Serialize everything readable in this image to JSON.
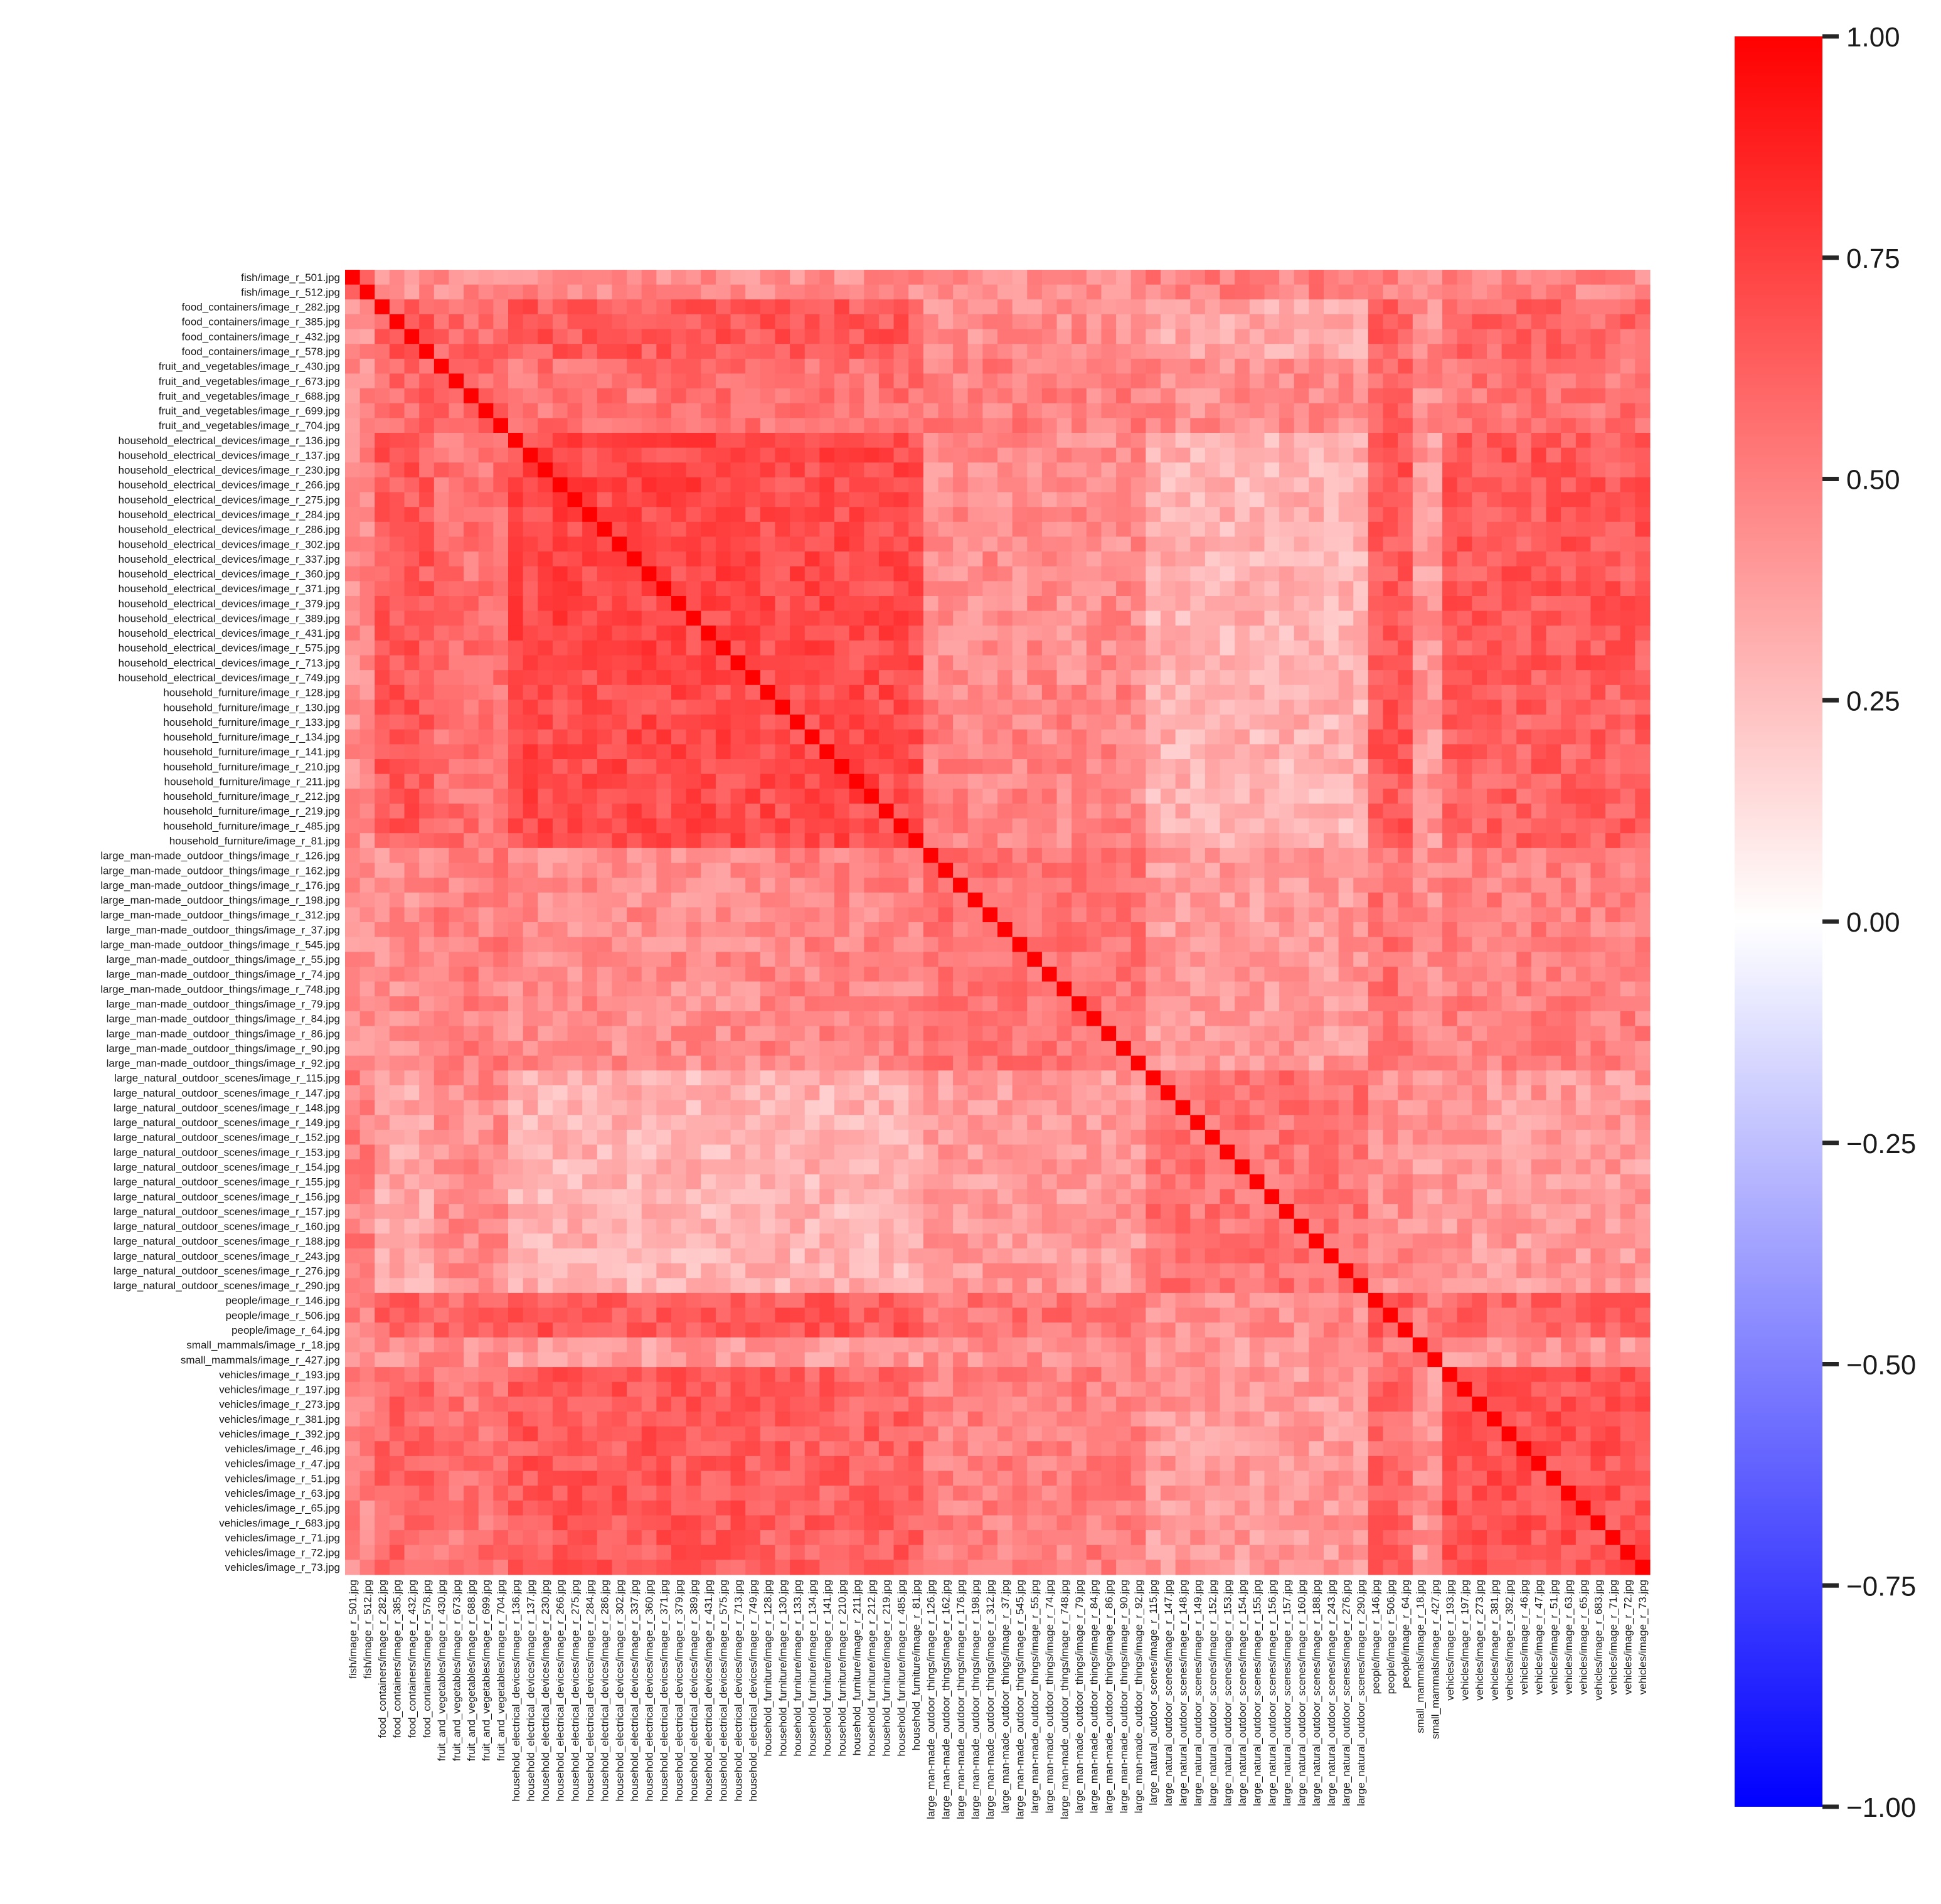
{
  "chart_data": {
    "type": "heatmap",
    "title": "",
    "xlabel": "",
    "ylabel": "",
    "labels": [
      "fish/image_r_501.jpg",
      "fish/image_r_512.jpg",
      "food_containers/image_r_282.jpg",
      "food_containers/image_r_385.jpg",
      "food_containers/image_r_432.jpg",
      "food_containers/image_r_578.jpg",
      "fruit_and_vegetables/image_r_430.jpg",
      "fruit_and_vegetables/image_r_673.jpg",
      "fruit_and_vegetables/image_r_688.jpg",
      "fruit_and_vegetables/image_r_699.jpg",
      "fruit_and_vegetables/image_r_704.jpg",
      "household_electrical_devices/image_r_136.jpg",
      "household_electrical_devices/image_r_137.jpg",
      "household_electrical_devices/image_r_230.jpg",
      "household_electrical_devices/image_r_266.jpg",
      "household_electrical_devices/image_r_275.jpg",
      "household_electrical_devices/image_r_284.jpg",
      "household_electrical_devices/image_r_286.jpg",
      "household_electrical_devices/image_r_302.jpg",
      "household_electrical_devices/image_r_337.jpg",
      "household_electrical_devices/image_r_360.jpg",
      "household_electrical_devices/image_r_371.jpg",
      "household_electrical_devices/image_r_379.jpg",
      "household_electrical_devices/image_r_389.jpg",
      "household_electrical_devices/image_r_431.jpg",
      "household_electrical_devices/image_r_575.jpg",
      "household_electrical_devices/image_r_713.jpg",
      "household_electrical_devices/image_r_749.jpg",
      "household_furniture/image_r_128.jpg",
      "household_furniture/image_r_130.jpg",
      "household_furniture/image_r_133.jpg",
      "household_furniture/image_r_134.jpg",
      "household_furniture/image_r_141.jpg",
      "household_furniture/image_r_210.jpg",
      "household_furniture/image_r_211.jpg",
      "household_furniture/image_r_212.jpg",
      "household_furniture/image_r_219.jpg",
      "household_furniture/image_r_485.jpg",
      "household_furniture/image_r_81.jpg",
      "large_man-made_outdoor_things/image_r_126.jpg",
      "large_man-made_outdoor_things/image_r_162.jpg",
      "large_man-made_outdoor_things/image_r_176.jpg",
      "large_man-made_outdoor_things/image_r_198.jpg",
      "large_man-made_outdoor_things/image_r_312.jpg",
      "large_man-made_outdoor_things/image_r_37.jpg",
      "large_man-made_outdoor_things/image_r_545.jpg",
      "large_man-made_outdoor_things/image_r_55.jpg",
      "large_man-made_outdoor_things/image_r_74.jpg",
      "large_man-made_outdoor_things/image_r_748.jpg",
      "large_man-made_outdoor_things/image_r_79.jpg",
      "large_man-made_outdoor_things/image_r_84.jpg",
      "large_man-made_outdoor_things/image_r_86.jpg",
      "large_man-made_outdoor_things/image_r_90.jpg",
      "large_man-made_outdoor_things/image_r_92.jpg",
      "large_natural_outdoor_scenes/image_r_115.jpg",
      "large_natural_outdoor_scenes/image_r_147.jpg",
      "large_natural_outdoor_scenes/image_r_148.jpg",
      "large_natural_outdoor_scenes/image_r_149.jpg",
      "large_natural_outdoor_scenes/image_r_152.jpg",
      "large_natural_outdoor_scenes/image_r_153.jpg",
      "large_natural_outdoor_scenes/image_r_154.jpg",
      "large_natural_outdoor_scenes/image_r_155.jpg",
      "large_natural_outdoor_scenes/image_r_156.jpg",
      "large_natural_outdoor_scenes/image_r_157.jpg",
      "large_natural_outdoor_scenes/image_r_160.jpg",
      "large_natural_outdoor_scenes/image_r_188.jpg",
      "large_natural_outdoor_scenes/image_r_243.jpg",
      "large_natural_outdoor_scenes/image_r_276.jpg",
      "large_natural_outdoor_scenes/image_r_290.jpg",
      "people/image_r_146.jpg",
      "people/image_r_506.jpg",
      "people/image_r_64.jpg",
      "small_mammals/image_r_18.jpg",
      "small_mammals/image_r_427.jpg",
      "vehicles/image_r_193.jpg",
      "vehicles/image_r_197.jpg",
      "vehicles/image_r_273.jpg",
      "vehicles/image_r_381.jpg",
      "vehicles/image_r_392.jpg",
      "vehicles/image_r_46.jpg",
      "vehicles/image_r_47.jpg",
      "vehicles/image_r_51.jpg",
      "vehicles/image_r_63.jpg",
      "vehicles/image_r_65.jpg",
      "vehicles/image_r_683.jpg",
      "vehicles/image_r_71.jpg",
      "vehicles/image_r_72.jpg",
      "vehicles/image_r_73.jpg"
    ],
    "block_correlation": {
      "groups": [
        "fish",
        "food_containers",
        "fruit_and_vegetables",
        "household_electrical_devices",
        "household_furniture",
        "large_man-made_outdoor_things",
        "large_natural_outdoor_scenes",
        "people",
        "small_mammals",
        "vehicles"
      ],
      "matrix": [
        [
          0.55,
          0.45,
          0.45,
          0.45,
          0.45,
          0.45,
          0.5,
          0.48,
          0.4,
          0.48
        ],
        [
          0.45,
          0.65,
          0.6,
          0.65,
          0.65,
          0.45,
          0.35,
          0.6,
          0.45,
          0.6
        ],
        [
          0.45,
          0.6,
          0.6,
          0.55,
          0.55,
          0.5,
          0.45,
          0.6,
          0.45,
          0.55
        ],
        [
          0.45,
          0.65,
          0.55,
          0.72,
          0.7,
          0.45,
          0.3,
          0.65,
          0.4,
          0.65
        ],
        [
          0.45,
          0.65,
          0.55,
          0.7,
          0.7,
          0.48,
          0.3,
          0.65,
          0.4,
          0.62
        ],
        [
          0.45,
          0.45,
          0.5,
          0.45,
          0.48,
          0.55,
          0.4,
          0.55,
          0.45,
          0.5
        ],
        [
          0.5,
          0.35,
          0.45,
          0.3,
          0.3,
          0.4,
          0.55,
          0.45,
          0.4,
          0.4
        ],
        [
          0.48,
          0.6,
          0.6,
          0.65,
          0.65,
          0.55,
          0.45,
          0.65,
          0.5,
          0.6
        ],
        [
          0.4,
          0.45,
          0.45,
          0.4,
          0.4,
          0.45,
          0.4,
          0.5,
          0.5,
          0.42
        ],
        [
          0.48,
          0.6,
          0.55,
          0.65,
          0.62,
          0.5,
          0.4,
          0.6,
          0.42,
          0.68
        ]
      ],
      "diagonal": 1.0
    },
    "colorbar": {
      "vmin": -1.0,
      "vmax": 1.0,
      "colormap": [
        "#0000ff",
        "#ffffff",
        "#ff0000"
      ],
      "ticks": [
        "1.00",
        "0.75",
        "0.50",
        "0.25",
        "0.00",
        "−0.25",
        "−0.50",
        "−0.75",
        "−1.00"
      ]
    },
    "colors": {
      "low": "#0000ff",
      "mid": "#ffffff",
      "high": "#ff0000",
      "text": "#1a1a1a"
    }
  }
}
